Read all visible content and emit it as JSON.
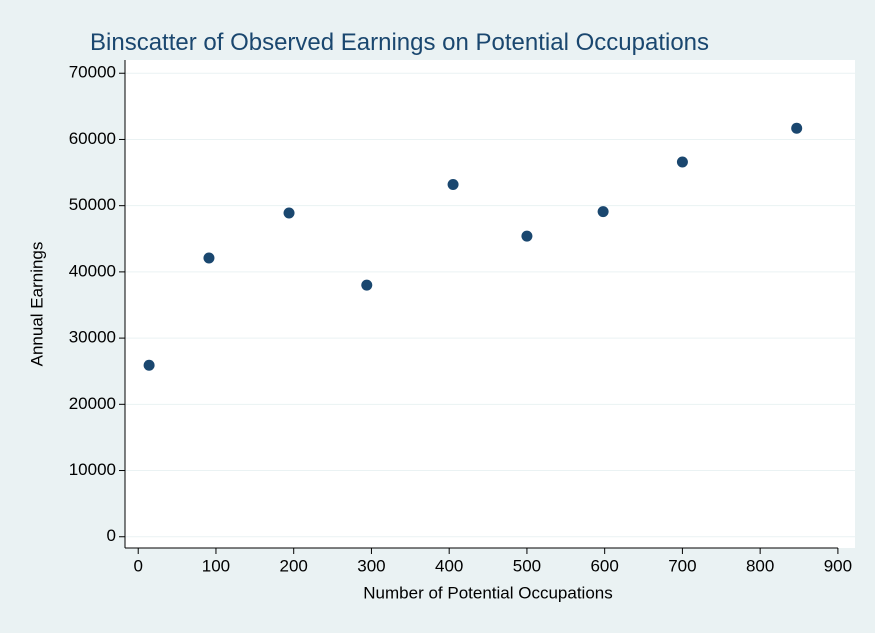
{
  "chart_data": {
    "type": "scatter",
    "title": "Binscatter of Observed Earnings on Potential Occupations",
    "x_label": "Number of Potential Occupations",
    "y_label": "Annual Earnings",
    "series": [
      {
        "name": "Annual Earnings",
        "color": "#1a476f",
        "x": [
          14,
          91,
          194,
          294,
          405,
          500,
          598,
          700,
          847
        ],
        "values": [
          25900,
          42100,
          48900,
          38000,
          53200,
          45400,
          49100,
          56600,
          61700
        ]
      }
    ],
    "xlim": [
      -17,
      922
    ],
    "ylim": [
      -1700,
      72000
    ],
    "xticks": [
      0,
      100,
      200,
      300,
      400,
      500,
      600,
      700,
      800,
      900
    ],
    "yticks": [
      0,
      10000,
      20000,
      30000,
      40000,
      50000,
      60000,
      70000
    ],
    "grid": true
  }
}
